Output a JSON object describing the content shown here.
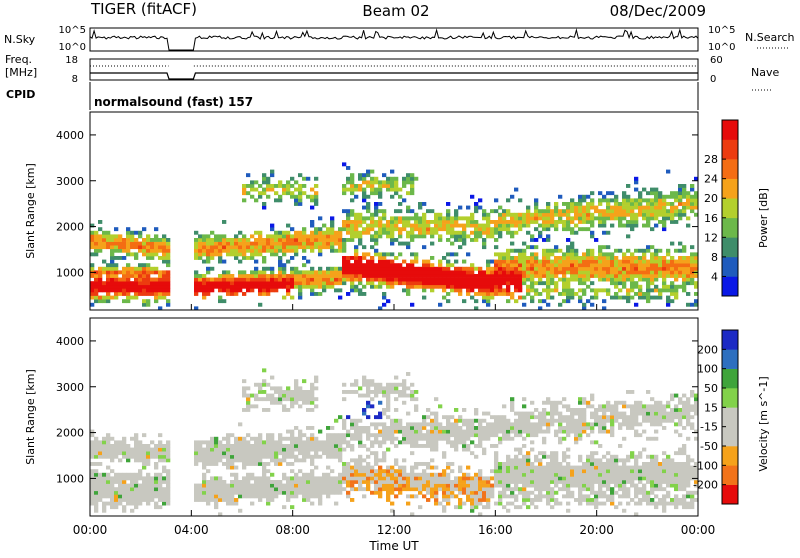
{
  "header": {
    "radar": "TIGER (fitACF)",
    "beam": "Beam 02",
    "date": "08/Dec/2009"
  },
  "top_panels": {
    "nsky_label": "N.Sky",
    "nsky_ticks": [
      "10^5",
      "10^0"
    ],
    "nsearch_label": "N.Search",
    "nsearch_ticks": [
      "10^5",
      "10^0"
    ],
    "freq_label_line1": "Freq.",
    "freq_label_line2": "[MHz]",
    "freq_ticks": [
      "18",
      "8"
    ],
    "nave_label": "Nave",
    "nave_ticks": [
      "60",
      "0"
    ],
    "cpid_label": "CPID",
    "cpid_text": "normalsound (fast) 157"
  },
  "colors": {
    "power_scale": [
      "#0a18e6",
      "#1f5bbd",
      "#3f8d6a",
      "#6cb84a",
      "#b3cf2d",
      "#f5a21b",
      "#f46d13",
      "#ec3b0f",
      "#e60b0b"
    ],
    "velocity_scale": [
      "#e60b0b",
      "#f2731a",
      "#f5a21b",
      "#c8c8c0",
      "#c8c8c0",
      "#82d24a",
      "#3fa43a",
      "#2d6fbf",
      "#1c2ac4"
    ]
  },
  "chart_data": [
    {
      "type": "heatmap",
      "name": "power",
      "ylabel": "Slant Range [km]",
      "yticks": [
        "1000",
        "2000",
        "3000",
        "4000"
      ],
      "ylim": [
        180,
        4500
      ],
      "colorbar_label": "Power [dB]",
      "colorbar_ticks": [
        "4",
        "8",
        "12",
        "16",
        "20",
        "24",
        "28"
      ],
      "colorbar_range": [
        0,
        30
      ],
      "data_gap_ut_hours": [
        3.1,
        4.1
      ]
    },
    {
      "type": "heatmap",
      "name": "velocity",
      "ylabel": "Slant Range [km]",
      "yticks": [
        "1000",
        "2000",
        "3000",
        "4000"
      ],
      "ylim": [
        180,
        4500
      ],
      "colorbar_label": "Velocity [m s^-1]",
      "colorbar_ticks": [
        "-200",
        "-100",
        "-50",
        "-15",
        "15",
        "50",
        "100",
        "200"
      ],
      "data_gap_ut_hours": [
        3.1,
        4.1
      ]
    }
  ],
  "x_axis": {
    "label": "Time UT",
    "ticks": [
      "00:00",
      "04:00",
      "08:00",
      "12:00",
      "16:00",
      "20:00",
      "00:00"
    ],
    "range_hours": [
      0,
      24
    ]
  }
}
